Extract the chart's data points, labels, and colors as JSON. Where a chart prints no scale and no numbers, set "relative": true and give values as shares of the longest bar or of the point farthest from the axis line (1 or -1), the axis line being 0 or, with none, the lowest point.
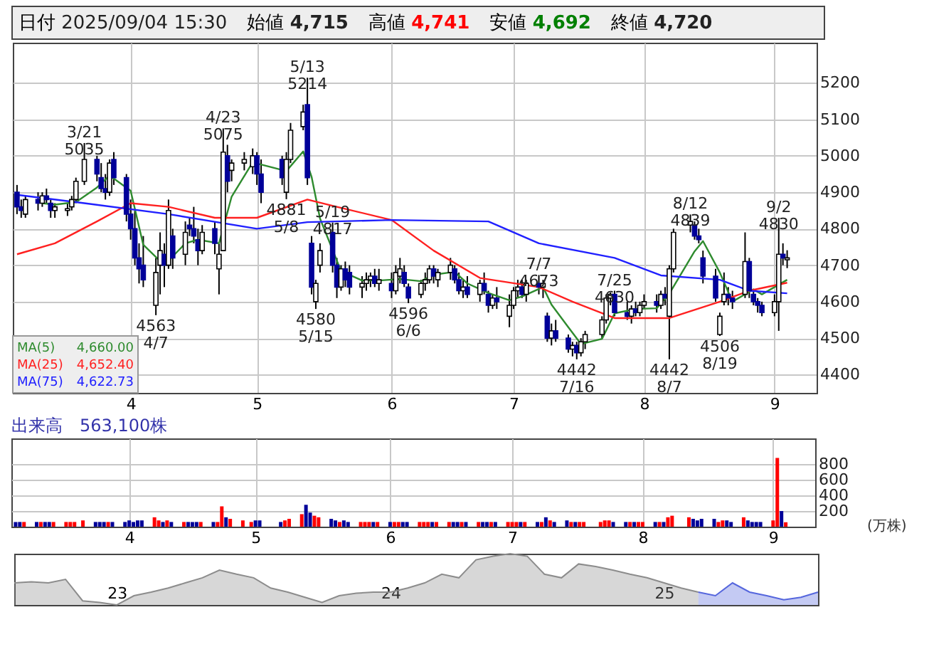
{
  "chart_data": [
    {
      "type": "candlestick",
      "colors": [
        "#000099",
        "#000099",
        "#ffffff",
        "#000099",
        "#ffffff",
        "#000099",
        "#000099",
        "#ffffff",
        "#ffffff",
        "#ffffff",
        "#ffffff",
        "#ffffff",
        "#000099",
        "#000099",
        "#000099",
        "#ffffff",
        "#000099",
        "#000099",
        "#000099",
        "#000099",
        "#000099",
        "#000099",
        "#ffffff",
        "#ffffff",
        "#000099",
        "#ffffff",
        "#000099",
        "#ffffff",
        "#000099",
        "#000099",
        "#000099",
        "#ffffff",
        "#000099",
        "#ffffff",
        "#ffffff",
        "#000099",
        "#ffffff",
        "#ffffff",
        "#ffffff",
        "#000099",
        "#000099",
        "#000099",
        "#ffffff",
        "#ffffff",
        "#ffffff",
        "#000099",
        "#000099",
        "#ffffff",
        "#ffffff",
        "#000099",
        "#000099",
        "#ffffff",
        "#000099",
        "#000099",
        "#ffffff",
        "#ffffff",
        "#ffffff",
        "#000099",
        "#ffffff",
        "#000099",
        "#ffffff",
        "#ffffff",
        "#000099",
        "#000099",
        "#ffffff",
        "#ffffff",
        "#ffffff",
        "#000099",
        "#ffffff",
        "#ffffff",
        "#000099",
        "#000099",
        "#ffffff",
        "#000099",
        "#ffffff",
        "#000099",
        "#000099",
        "#ffffff",
        "#000099",
        "#ffffff",
        "#ffffff",
        "#ffffff",
        "#000099",
        "#ffffff",
        "#000099",
        "#ffffff",
        "#000099",
        "#ffffff",
        "#000099",
        "#000099",
        "#ffffff",
        "#000099",
        "#ffffff",
        "#ffffff",
        "#ffffff",
        "#ffffff",
        "#ffffff",
        "#000099",
        "#000099",
        "#ffffff",
        "#000099",
        "#ffffff",
        "#ffffff",
        "#000099",
        "#ffffff",
        "#000099",
        "#ffffff",
        "#ffffff",
        "#ffffff",
        "#000099",
        "#000099",
        "#000099",
        "#000099",
        "#ffffff",
        "#ffffff",
        "#000099",
        "#000099",
        "#ffffff",
        "#000099",
        "#000099",
        "#000099",
        "#000099",
        "#ffffff",
        "#ffffff",
        "#000099",
        "#ffffff"
      ],
      "ylim": [
        4350,
        5310
      ],
      "yticks": [
        4400,
        4500,
        4600,
        4700,
        4800,
        4900,
        5000,
        5100,
        5200
      ],
      "xlim": [
        "2025-03-04",
        "2025-09-11"
      ],
      "xticks": [
        {
          "value": "2025-04-01",
          "label": "4"
        },
        {
          "value": "2025-05-01",
          "label": "5"
        },
        {
          "value": "2025-06-02",
          "label": "6"
        },
        {
          "value": "2025-07-01",
          "label": "7"
        },
        {
          "value": "2025-08-01",
          "label": "8"
        },
        {
          "value": "2025-09-01",
          "label": "9"
        }
      ],
      "grid": true,
      "legend": "bottom left",
      "x": [
        "2025-03-05",
        "2025-03-06",
        "2025-03-07",
        "2025-03-10",
        "2025-03-11",
        "2025-03-12",
        "2025-03-13",
        "2025-03-14",
        "2025-03-17",
        "2025-03-18",
        "2025-03-19",
        "2025-03-21",
        "2025-03-24",
        "2025-03-25",
        "2025-03-26",
        "2025-03-27",
        "2025-03-28",
        "2025-03-31",
        "2025-04-01",
        "2025-04-02",
        "2025-04-03",
        "2025-04-04",
        "2025-04-07",
        "2025-04-08",
        "2025-04-09",
        "2025-04-10",
        "2025-04-11",
        "2025-04-14",
        "2025-04-15",
        "2025-04-16",
        "2025-04-17",
        "2025-04-18",
        "2025-04-21",
        "2025-04-22",
        "2025-04-23",
        "2025-04-24",
        "2025-04-25",
        "2025-04-28",
        "2025-04-30",
        "2025-05-01",
        "2025-05-02",
        "2025-05-07",
        "2025-05-08",
        "2025-05-09",
        "2025-05-12",
        "2025-05-13",
        "2025-05-14",
        "2025-05-15",
        "2025-05-16",
        "2025-05-19",
        "2025-05-20",
        "2025-05-21",
        "2025-05-22",
        "2025-05-23",
        "2025-05-26",
        "2025-05-27",
        "2025-05-28",
        "2025-05-29",
        "2025-05-30",
        "2025-06-02",
        "2025-06-03",
        "2025-06-04",
        "2025-06-05",
        "2025-06-06",
        "2025-06-09",
        "2025-06-10",
        "2025-06-11",
        "2025-06-12",
        "2025-06-13",
        "2025-06-16",
        "2025-06-17",
        "2025-06-18",
        "2025-06-19",
        "2025-06-20",
        "2025-06-23",
        "2025-06-24",
        "2025-06-25",
        "2025-06-26",
        "2025-06-27",
        "2025-06-30",
        "2025-07-01",
        "2025-07-02",
        "2025-07-03",
        "2025-07-04",
        "2025-07-07",
        "2025-07-08",
        "2025-07-09",
        "2025-07-10",
        "2025-07-11",
        "2025-07-14",
        "2025-07-15",
        "2025-07-16",
        "2025-07-17",
        "2025-07-18",
        "2025-07-22",
        "2025-07-23",
        "2025-07-24",
        "2025-07-25",
        "2025-07-28",
        "2025-07-29",
        "2025-07-30",
        "2025-07-31",
        "2025-08-01",
        "2025-08-04",
        "2025-08-05",
        "2025-08-06",
        "2025-08-07",
        "2025-08-08",
        "2025-08-12",
        "2025-08-13",
        "2025-08-14",
        "2025-08-15",
        "2025-08-18",
        "2025-08-19",
        "2025-08-20",
        "2025-08-21",
        "2025-08-22",
        "2025-08-25",
        "2025-08-26",
        "2025-08-27",
        "2025-08-28",
        "2025-08-29",
        "2025-09-01",
        "2025-09-02",
        "2025-09-03",
        "2025-09-04"
      ],
      "ohlc": [
        [
          4900,
          4920,
          4840,
          4860
        ],
        [
          4860,
          4880,
          4830,
          4850
        ],
        [
          4840,
          4890,
          4830,
          4880
        ],
        [
          4880,
          4900,
          4850,
          4870
        ],
        [
          4870,
          4900,
          4860,
          4890
        ],
        [
          4890,
          4910,
          4870,
          4880
        ],
        [
          4870,
          4880,
          4830,
          4850
        ],
        [
          4850,
          4870,
          4830,
          4860
        ],
        [
          4850,
          4870,
          4835,
          4855
        ],
        [
          4860,
          4890,
          4850,
          4880
        ],
        [
          4880,
          4940,
          4870,
          4930
        ],
        [
          4930,
          5035,
          4920,
          4990
        ],
        [
          4990,
          5000,
          4930,
          4950
        ],
        [
          4940,
          4980,
          4900,
          4910
        ],
        [
          4910,
          4950,
          4880,
          4900
        ],
        [
          4900,
          4990,
          4890,
          4980
        ],
        [
          4990,
          5010,
          4920,
          4940
        ],
        [
          4940,
          4950,
          4820,
          4840
        ],
        [
          4840,
          4880,
          4770,
          4800
        ],
        [
          4800,
          4850,
          4700,
          4720
        ],
        [
          4720,
          4760,
          4650,
          4690
        ],
        [
          4700,
          4780,
          4640,
          4660
        ],
        [
          4590,
          4720,
          4563,
          4680
        ],
        [
          4700,
          4790,
          4620,
          4740
        ],
        [
          4730,
          4760,
          4640,
          4700
        ],
        [
          4700,
          4880,
          4690,
          4850
        ],
        [
          4780,
          4800,
          4690,
          4720
        ],
        [
          4730,
          4820,
          4700,
          4790
        ],
        [
          4810,
          4830,
          4780,
          4800
        ],
        [
          4800,
          4860,
          4760,
          4780
        ],
        [
          4770,
          4800,
          4700,
          4740
        ],
        [
          4740,
          4810,
          4730,
          4790
        ],
        [
          4800,
          4820,
          4730,
          4760
        ],
        [
          4690,
          4760,
          4620,
          4730
        ],
        [
          4740,
          5075,
          4740,
          5010
        ],
        [
          5000,
          5030,
          4900,
          4930
        ],
        [
          4960,
          4990,
          4930,
          4980
        ],
        [
          4980,
          5010,
          4960,
          4990
        ],
        [
          4970,
          5020,
          4950,
          5000
        ],
        [
          5000,
          5010,
          4920,
          4950
        ],
        [
          4950,
          4990,
          4870,
          4900
        ],
        [
          4990,
          5000,
          4920,
          4940
        ],
        [
          4900,
          5010,
          4881,
          4990
        ],
        [
          4990,
          5090,
          4980,
          5070
        ],
        [
          5080,
          5140,
          5070,
          5120
        ],
        [
          5140,
          5214,
          4920,
          4940
        ],
        [
          4760,
          4780,
          4620,
          4640
        ],
        [
          4600,
          4660,
          4580,
          4650
        ],
        [
          4700,
          4760,
          4680,
          4740
        ],
        [
          4790,
          4817,
          4680,
          4700
        ],
        [
          4700,
          4720,
          4610,
          4640
        ],
        [
          4640,
          4700,
          4630,
          4690
        ],
        [
          4690,
          4710,
          4640,
          4660
        ],
        [
          4680,
          4700,
          4620,
          4640
        ],
        [
          4640,
          4670,
          4610,
          4650
        ],
        [
          4650,
          4680,
          4630,
          4660
        ],
        [
          4660,
          4680,
          4640,
          4670
        ],
        [
          4670,
          4690,
          4640,
          4650
        ],
        [
          4650,
          4690,
          4630,
          4660
        ],
        [
          4650,
          4680,
          4610,
          4630
        ],
        [
          4630,
          4700,
          4620,
          4680
        ],
        [
          4670,
          4720,
          4650,
          4690
        ],
        [
          4680,
          4700,
          4640,
          4650
        ],
        [
          4640,
          4650,
          4596,
          4610
        ],
        [
          4620,
          4660,
          4610,
          4650
        ],
        [
          4650,
          4680,
          4630,
          4660
        ],
        [
          4660,
          4700,
          4650,
          4690
        ],
        [
          4690,
          4700,
          4650,
          4670
        ],
        [
          4660,
          4690,
          4640,
          4680
        ],
        [
          4680,
          4720,
          4660,
          4700
        ],
        [
          4690,
          4700,
          4650,
          4660
        ],
        [
          4660,
          4680,
          4620,
          4630
        ],
        [
          4630,
          4660,
          4610,
          4640
        ],
        [
          4640,
          4670,
          4610,
          4620
        ],
        [
          4620,
          4660,
          4600,
          4650
        ],
        [
          4650,
          4680,
          4620,
          4630
        ],
        [
          4620,
          4630,
          4570,
          4590
        ],
        [
          4590,
          4620,
          4580,
          4610
        ],
        [
          4610,
          4640,
          4580,
          4600
        ],
        [
          4560,
          4620,
          4530,
          4590
        ],
        [
          4590,
          4640,
          4580,
          4630
        ],
        [
          4630,
          4660,
          4610,
          4640
        ],
        [
          4640,
          4660,
          4610,
          4620
        ],
        [
          4620,
          4660,
          4600,
          4650
        ],
        [
          4650,
          4673,
          4620,
          4640
        ],
        [
          4640,
          4660,
          4610,
          4650
        ],
        [
          4560,
          4570,
          4490,
          4500
        ],
        [
          4500,
          4540,
          4480,
          4520
        ],
        [
          4520,
          4550,
          4490,
          4500
        ],
        [
          4500,
          4510,
          4460,
          4470
        ],
        [
          4470,
          4490,
          4450,
          4480
        ],
        [
          4480,
          4490,
          4442,
          4460
        ],
        [
          4460,
          4500,
          4450,
          4490
        ],
        [
          4490,
          4520,
          4470,
          4510
        ],
        [
          4510,
          4560,
          4500,
          4550
        ],
        [
          4550,
          4620,
          4540,
          4610
        ],
        [
          4610,
          4625,
          4590,
          4620
        ],
        [
          4620,
          4630,
          4560,
          4570
        ],
        [
          4570,
          4600,
          4550,
          4560
        ],
        [
          4560,
          4590,
          4540,
          4580
        ],
        [
          4580,
          4600,
          4560,
          4570
        ],
        [
          4570,
          4600,
          4560,
          4590
        ],
        [
          4590,
          4620,
          4580,
          4600
        ],
        [
          4600,
          4620,
          4570,
          4590
        ],
        [
          4590,
          4630,
          4580,
          4620
        ],
        [
          4620,
          4640,
          4590,
          4610
        ],
        [
          4560,
          4700,
          4442,
          4690
        ],
        [
          4690,
          4800,
          4680,
          4790
        ],
        [
          4810,
          4839,
          4790,
          4820
        ],
        [
          4810,
          4820,
          4770,
          4780
        ],
        [
          4780,
          4800,
          4760,
          4770
        ],
        [
          4720,
          4740,
          4650,
          4670
        ],
        [
          4670,
          4690,
          4600,
          4610
        ],
        [
          4510,
          4570,
          4506,
          4560
        ],
        [
          4600,
          4680,
          4590,
          4620
        ],
        [
          4620,
          4640,
          4590,
          4610
        ],
        [
          4610,
          4630,
          4580,
          4600
        ],
        [
          4620,
          4790,
          4610,
          4710
        ],
        [
          4710,
          4720,
          4610,
          4630
        ],
        [
          4620,
          4630,
          4590,
          4600
        ],
        [
          4600,
          4610,
          4570,
          4590
        ],
        [
          4590,
          4600,
          4560,
          4570
        ],
        [
          4570,
          4620,
          4560,
          4600
        ],
        [
          4600,
          4830,
          4520,
          4730
        ],
        [
          4730,
          4760,
          4700,
          4720
        ],
        [
          4715,
          4741,
          4692,
          4720
        ]
      ],
      "series": [
        {
          "name": "MA(5)",
          "type": "line",
          "color": "#2e8b2e",
          "x": [
            "2025-03-11",
            "2025-03-14",
            "2025-03-19",
            "2025-03-24",
            "2025-03-27",
            "2025-04-01",
            "2025-04-04",
            "2025-04-09",
            "2025-04-14",
            "2025-04-17",
            "2025-04-22",
            "2025-04-25",
            "2025-04-30",
            "2025-05-08",
            "2025-05-12",
            "2025-05-14",
            "2025-05-16",
            "2025-05-21",
            "2025-05-26",
            "2025-05-30",
            "2025-06-04",
            "2025-06-09",
            "2025-06-12",
            "2025-06-17",
            "2025-06-20",
            "2025-06-25",
            "2025-06-30",
            "2025-07-03",
            "2025-07-08",
            "2025-07-10",
            "2025-07-14",
            "2025-07-17",
            "2025-07-22",
            "2025-07-25",
            "2025-07-30",
            "2025-08-04",
            "2025-08-07",
            "2025-08-13",
            "2025-08-15",
            "2025-08-19",
            "2025-08-22",
            "2025-08-27",
            "2025-08-29",
            "2025-09-04"
          ],
          "values": [
            4870,
            4866,
            4873,
            4913,
            4946,
            4904,
            4756,
            4700,
            4760,
            4770,
            4760,
            4888,
            4982,
            4958,
            5012,
            4942,
            4828,
            4684,
            4658,
            4658,
            4662,
            4656,
            4674,
            4682,
            4650,
            4624,
            4604,
            4614,
            4640,
            4592,
            4530,
            4484,
            4498,
            4568,
            4580,
            4582,
            4622,
            4738,
            4766,
            4680,
            4600,
            4634,
            4620,
            4660
          ]
        },
        {
          "name": "MA(25)",
          "type": "line",
          "color": "#ff2020",
          "x": [
            "2025-03-05",
            "2025-03-14",
            "2025-03-24",
            "2025-04-01",
            "2025-04-10",
            "2025-04-21",
            "2025-05-01",
            "2025-05-13",
            "2025-05-20",
            "2025-06-02",
            "2025-06-12",
            "2025-06-23",
            "2025-07-07",
            "2025-07-15",
            "2025-07-25",
            "2025-08-07",
            "2025-08-19",
            "2025-08-26",
            "2025-09-04"
          ],
          "values": [
            4730,
            4760,
            4820,
            4870,
            4860,
            4830,
            4830,
            4880,
            4860,
            4824,
            4740,
            4665,
            4640,
            4600,
            4555,
            4555,
            4600,
            4630,
            4652
          ]
        },
        {
          "name": "MA(75)",
          "type": "line",
          "color": "#2020ff",
          "x": [
            "2025-03-05",
            "2025-03-21",
            "2025-04-10",
            "2025-05-01",
            "2025-05-13",
            "2025-06-02",
            "2025-06-25",
            "2025-07-07",
            "2025-07-25",
            "2025-08-05",
            "2025-08-19",
            "2025-08-26",
            "2025-09-04"
          ],
          "values": [
            4893,
            4870,
            4840,
            4800,
            4818,
            4824,
            4820,
            4760,
            4720,
            4672,
            4660,
            4630,
            4623
          ]
        }
      ],
      "annotations": [
        "日付 2025/09/04 15:30",
        "始値 4,715",
        "高値 4,741",
        "安値 4,692",
        "終値 4,720",
        "4,660.00",
        "4,652.40",
        "4,622.73",
        {
          "text": "3/21\n5035",
          "x": "2025-03-21",
          "y": 5035
        },
        {
          "text": "4563\n4/7",
          "x": "2025-04-07",
          "y": 4563
        },
        {
          "text": "4/23\n5075",
          "x": "2025-04-23",
          "y": 5075
        },
        {
          "text": "5/13\n5214",
          "x": "2025-05-13",
          "y": 5214
        },
        {
          "text": "4881\n5/8",
          "x": "2025-05-08",
          "y": 4881
        },
        {
          "text": "5/19\n4817",
          "x": "2025-05-19",
          "y": 4817
        },
        {
          "text": "4580\n5/15",
          "x": "2025-05-15",
          "y": 4580
        },
        {
          "text": "4596\n6/6",
          "x": "2025-06-06",
          "y": 4596
        },
        {
          "text": "7/7\n4673",
          "x": "2025-07-07",
          "y": 4673
        },
        {
          "text": "4442\n7/16",
          "x": "2025-07-16",
          "y": 4442
        },
        {
          "text": "7/25\n4630",
          "x": "2025-07-25",
          "y": 4630
        },
        {
          "text": "4442\n8/7",
          "x": "2025-08-07",
          "y": 4442
        },
        {
          "text": "8/12\n4839",
          "x": "2025-08-12",
          "y": 4839
        },
        {
          "text": "4506\n8/19",
          "x": "2025-08-19",
          "y": 4506
        },
        {
          "text": "9/2\n4830",
          "x": "2025-09-02",
          "y": 4830
        }
      ]
    },
    {
      "type": "bar",
      "title": "出来高　563,100株",
      "ylabel": "(万株)",
      "ylim": [
        0,
        1130
      ],
      "yticks": [
        200,
        400,
        600,
        800
      ],
      "xlim": [
        "2025-03-04",
        "2025-09-11"
      ],
      "xticks": [
        {
          "value": "2025-04-01",
          "label": "4"
        },
        {
          "value": "2025-05-01",
          "label": "5"
        },
        {
          "value": "2025-06-02",
          "label": "6"
        },
        {
          "value": "2025-07-01",
          "label": "7"
        },
        {
          "value": "2025-08-01",
          "label": "8"
        },
        {
          "value": "2025-09-01",
          "label": "9"
        }
      ],
      "grid": true,
      "x": [
        "2025-03-05",
        "2025-03-06",
        "2025-03-07",
        "2025-03-10",
        "2025-03-11",
        "2025-03-12",
        "2025-03-13",
        "2025-03-14",
        "2025-03-17",
        "2025-03-18",
        "2025-03-19",
        "2025-03-21",
        "2025-03-24",
        "2025-03-25",
        "2025-03-26",
        "2025-03-27",
        "2025-03-28",
        "2025-03-31",
        "2025-04-01",
        "2025-04-02",
        "2025-04-03",
        "2025-04-04",
        "2025-04-07",
        "2025-04-08",
        "2025-04-09",
        "2025-04-10",
        "2025-04-11",
        "2025-04-14",
        "2025-04-15",
        "2025-04-16",
        "2025-04-17",
        "2025-04-18",
        "2025-04-21",
        "2025-04-22",
        "2025-04-23",
        "2025-04-24",
        "2025-04-25",
        "2025-04-28",
        "2025-04-30",
        "2025-05-01",
        "2025-05-02",
        "2025-05-07",
        "2025-05-08",
        "2025-05-09",
        "2025-05-12",
        "2025-05-13",
        "2025-05-14",
        "2025-05-15",
        "2025-05-16",
        "2025-05-19",
        "2025-05-20",
        "2025-05-21",
        "2025-05-22",
        "2025-05-23",
        "2025-05-26",
        "2025-05-27",
        "2025-05-28",
        "2025-05-29",
        "2025-05-30",
        "2025-06-02",
        "2025-06-03",
        "2025-06-04",
        "2025-06-05",
        "2025-06-06",
        "2025-06-09",
        "2025-06-10",
        "2025-06-11",
        "2025-06-12",
        "2025-06-13",
        "2025-06-16",
        "2025-06-17",
        "2025-06-18",
        "2025-06-19",
        "2025-06-20",
        "2025-06-23",
        "2025-06-24",
        "2025-06-25",
        "2025-06-26",
        "2025-06-27",
        "2025-06-30",
        "2025-07-01",
        "2025-07-02",
        "2025-07-03",
        "2025-07-04",
        "2025-07-07",
        "2025-07-08",
        "2025-07-09",
        "2025-07-10",
        "2025-07-11",
        "2025-07-14",
        "2025-07-15",
        "2025-07-16",
        "2025-07-17",
        "2025-07-18",
        "2025-07-22",
        "2025-07-23",
        "2025-07-24",
        "2025-07-25",
        "2025-07-28",
        "2025-07-29",
        "2025-07-30",
        "2025-07-31",
        "2025-08-01",
        "2025-08-04",
        "2025-08-05",
        "2025-08-06",
        "2025-08-07",
        "2025-08-08",
        "2025-08-12",
        "2025-08-13",
        "2025-08-14",
        "2025-08-15",
        "2025-08-18",
        "2025-08-19",
        "2025-08-20",
        "2025-08-21",
        "2025-08-22",
        "2025-08-25",
        "2025-08-26",
        "2025-08-27",
        "2025-08-28",
        "2025-08-29",
        "2025-09-01",
        "2025-09-02",
        "2025-09-03",
        "2025-09-04"
      ],
      "values": [
        60,
        60,
        60,
        60,
        60,
        60,
        60,
        60,
        60,
        60,
        60,
        80,
        60,
        60,
        60,
        60,
        60,
        60,
        80,
        60,
        80,
        80,
        120,
        80,
        60,
        80,
        60,
        60,
        60,
        60,
        60,
        60,
        60,
        60,
        260,
        120,
        100,
        80,
        60,
        80,
        80,
        60,
        80,
        100,
        160,
        280,
        180,
        140,
        120,
        100,
        80,
        60,
        80,
        60,
        60,
        60,
        60,
        60,
        60,
        60,
        60,
        60,
        60,
        60,
        60,
        60,
        60,
        60,
        60,
        60,
        60,
        60,
        60,
        60,
        60,
        60,
        60,
        60,
        60,
        60,
        60,
        60,
        60,
        60,
        60,
        60,
        120,
        80,
        60,
        80,
        60,
        60,
        60,
        60,
        60,
        80,
        80,
        60,
        60,
        60,
        60,
        60,
        60,
        60,
        60,
        60,
        120,
        140,
        120,
        100,
        80,
        100,
        100,
        60,
        80,
        80,
        60,
        120,
        80,
        60,
        60,
        60,
        80,
        880,
        200,
        56.31
      ],
      "colors": [
        "#000099",
        "#000099",
        "#ff0000",
        "#000099",
        "#ff0000",
        "#000099",
        "#000099",
        "#ff0000",
        "#ff0000",
        "#ff0000",
        "#ff0000",
        "#ff0000",
        "#000099",
        "#000099",
        "#000099",
        "#ff0000",
        "#000099",
        "#000099",
        "#000099",
        "#000099",
        "#000099",
        "#000099",
        "#ff0000",
        "#ff0000",
        "#000099",
        "#ff0000",
        "#000099",
        "#ff0000",
        "#000099",
        "#000099",
        "#000099",
        "#ff0000",
        "#000099",
        "#ff0000",
        "#ff0000",
        "#000099",
        "#ff0000",
        "#ff0000",
        "#ff0000",
        "#000099",
        "#000099",
        "#000099",
        "#ff0000",
        "#ff0000",
        "#ff0000",
        "#000099",
        "#000099",
        "#ff0000",
        "#ff0000",
        "#000099",
        "#000099",
        "#ff0000",
        "#000099",
        "#000099",
        "#ff0000",
        "#ff0000",
        "#ff0000",
        "#000099",
        "#ff0000",
        "#000099",
        "#ff0000",
        "#ff0000",
        "#000099",
        "#000099",
        "#ff0000",
        "#ff0000",
        "#ff0000",
        "#000099",
        "#ff0000",
        "#ff0000",
        "#000099",
        "#000099",
        "#ff0000",
        "#000099",
        "#ff0000",
        "#000099",
        "#000099",
        "#ff0000",
        "#000099",
        "#ff0000",
        "#ff0000",
        "#ff0000",
        "#000099",
        "#ff0000",
        "#000099",
        "#ff0000",
        "#000099",
        "#ff0000",
        "#000099",
        "#000099",
        "#ff0000",
        "#000099",
        "#ff0000",
        "#ff0000",
        "#ff0000",
        "#ff0000",
        "#ff0000",
        "#000099",
        "#000099",
        "#ff0000",
        "#000099",
        "#ff0000",
        "#ff0000",
        "#000099",
        "#ff0000",
        "#000099",
        "#ff0000",
        "#ff0000",
        "#ff0000",
        "#000099",
        "#000099",
        "#000099",
        "#000099",
        "#ff0000",
        "#ff0000",
        "#000099",
        "#000099",
        "#ff0000",
        "#000099",
        "#000099",
        "#000099",
        "#000099",
        "#ff0000",
        "#ff0000",
        "#000099",
        "#ff0000"
      ]
    },
    {
      "type": "area",
      "relative": true,
      "categories": [
        null,
        null,
        null,
        null,
        null,
        null,
        "23",
        null,
        null,
        null,
        null,
        null,
        null,
        null,
        null,
        null,
        null,
        null,
        null,
        null,
        null,
        null,
        "24",
        null,
        null,
        null,
        null,
        null,
        null,
        null,
        null,
        null,
        null,
        null,
        null,
        null,
        null,
        null,
        "25",
        null,
        null,
        null,
        null,
        null,
        null,
        null,
        null,
        null
      ],
      "series": [
        {
          "color": "#8c8c8c",
          "values": [
            0.43,
            0.45,
            0.43,
            0.5,
            0.08,
            0.05,
            0,
            0.18,
            0.25,
            0.33,
            0.43,
            0.53,
            0.68,
            0.6,
            0.53,
            0.33,
            0.25,
            0.15,
            0.05,
            0.18,
            0.23,
            0.25,
            0.25,
            0.33,
            0.43,
            0.6,
            0.53,
            0.88,
            0.95,
            1,
            0.95,
            0.6,
            0.53,
            0.8,
            0.75,
            0.68,
            0.6,
            0.53,
            0.43,
            0.33,
            0.25,
            null,
            null,
            null,
            null,
            null,
            null,
            null
          ]
        },
        {
          "color": "#5566dd",
          "values": [
            null,
            null,
            null,
            null,
            null,
            null,
            null,
            null,
            null,
            null,
            null,
            null,
            null,
            null,
            null,
            null,
            null,
            null,
            null,
            null,
            null,
            null,
            null,
            null,
            null,
            null,
            null,
            null,
            null,
            null,
            null,
            null,
            null,
            null,
            null,
            null,
            null,
            null,
            null,
            null,
            0.25,
            0.18,
            0.43,
            0.25,
            0.18,
            0.1,
            0.15,
            0.25
          ]
        }
      ]
    }
  ]
}
